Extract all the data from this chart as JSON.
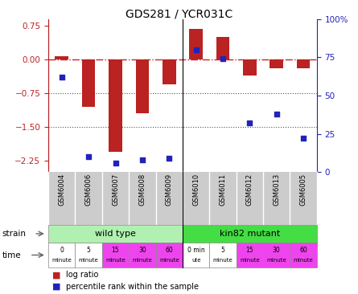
{
  "title": "GDS281 / YCR031C",
  "samples": [
    "GSM6004",
    "GSM6006",
    "GSM6007",
    "GSM6008",
    "GSM6009",
    "GSM6010",
    "GSM6011",
    "GSM6012",
    "GSM6013",
    "GSM6005"
  ],
  "log_ratio": [
    0.08,
    -1.05,
    -2.05,
    -1.2,
    -0.55,
    0.68,
    0.5,
    -0.35,
    -0.2,
    -0.2
  ],
  "percentile": [
    62,
    10,
    6,
    8,
    9,
    80,
    74,
    32,
    38,
    22
  ],
  "ylim_left": [
    -2.5,
    0.9
  ],
  "ylim_right": [
    0,
    100
  ],
  "left_ticks": [
    0.75,
    0,
    -0.75,
    -1.5,
    -2.25
  ],
  "right_ticks": [
    100,
    75,
    50,
    25,
    0
  ],
  "bar_color": "#bb2222",
  "dot_color": "#2222bb",
  "hline_color": "#cc2222",
  "dotted_color": "#555555",
  "strain_wt_label": "wild type",
  "strain_mut_label": "kin82 mutant",
  "wt_color": "#b0f0b0",
  "mut_color": "#44dd44",
  "time_labels_top": [
    "0",
    "5",
    "15",
    "30",
    "60",
    "0 min",
    "5",
    "15",
    "30",
    "60"
  ],
  "time_labels_bot": [
    "minute",
    "minute",
    "minute",
    "minute",
    "minute",
    "ute",
    "minute",
    "minute",
    "minute",
    "minute"
  ],
  "time_colors": [
    "#ffffff",
    "#ffffff",
    "#ee44ee",
    "#ee44ee",
    "#ee44ee",
    "#ffffff",
    "#ffffff",
    "#ee44ee",
    "#ee44ee",
    "#ee44ee"
  ],
  "legend_bar_label": "log ratio",
  "legend_dot_label": "percentile rank within the sample",
  "bg_color": "#ffffff"
}
